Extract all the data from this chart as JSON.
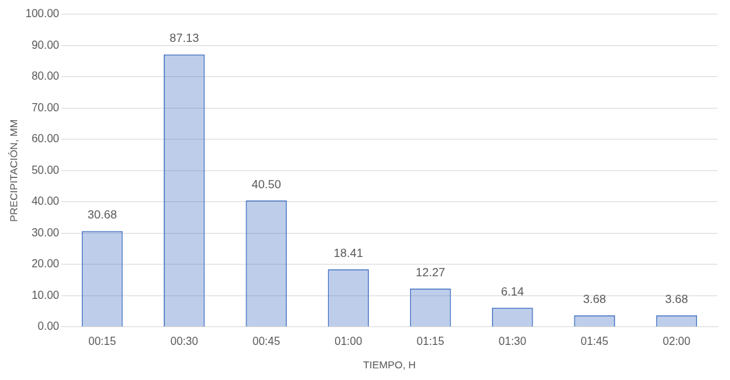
{
  "chart_data": {
    "type": "bar",
    "xlabel": "TIEMPO, H",
    "ylabel": "PRECIPITACIÓN, MM",
    "categories": [
      "00:15",
      "00:30",
      "00:45",
      "01:00",
      "01:15",
      "01:30",
      "01:45",
      "02:00"
    ],
    "values": [
      30.68,
      87.13,
      40.5,
      18.41,
      12.27,
      6.14,
      3.68,
      3.68
    ],
    "value_labels": [
      "30.68",
      "87.13",
      "40.50",
      "18.41",
      "12.27",
      "6.14",
      "3.68",
      "3.68"
    ],
    "color": "#4472c4",
    "ylim": [
      0,
      100
    ],
    "yticks": [
      {
        "value": 0,
        "label": "0.00"
      },
      {
        "value": 10,
        "label": "10.00"
      },
      {
        "value": 20,
        "label": "20.00"
      },
      {
        "value": 30,
        "label": "30.00"
      },
      {
        "value": 40,
        "label": "40.00"
      },
      {
        "value": 50,
        "label": "50.00"
      },
      {
        "value": 60,
        "label": "60.00"
      },
      {
        "value": 70,
        "label": "70.00"
      },
      {
        "value": 80,
        "label": "80.00"
      },
      {
        "value": 90,
        "label": "90.00"
      },
      {
        "value": 100,
        "label": "100.00"
      }
    ],
    "grid": "y"
  }
}
